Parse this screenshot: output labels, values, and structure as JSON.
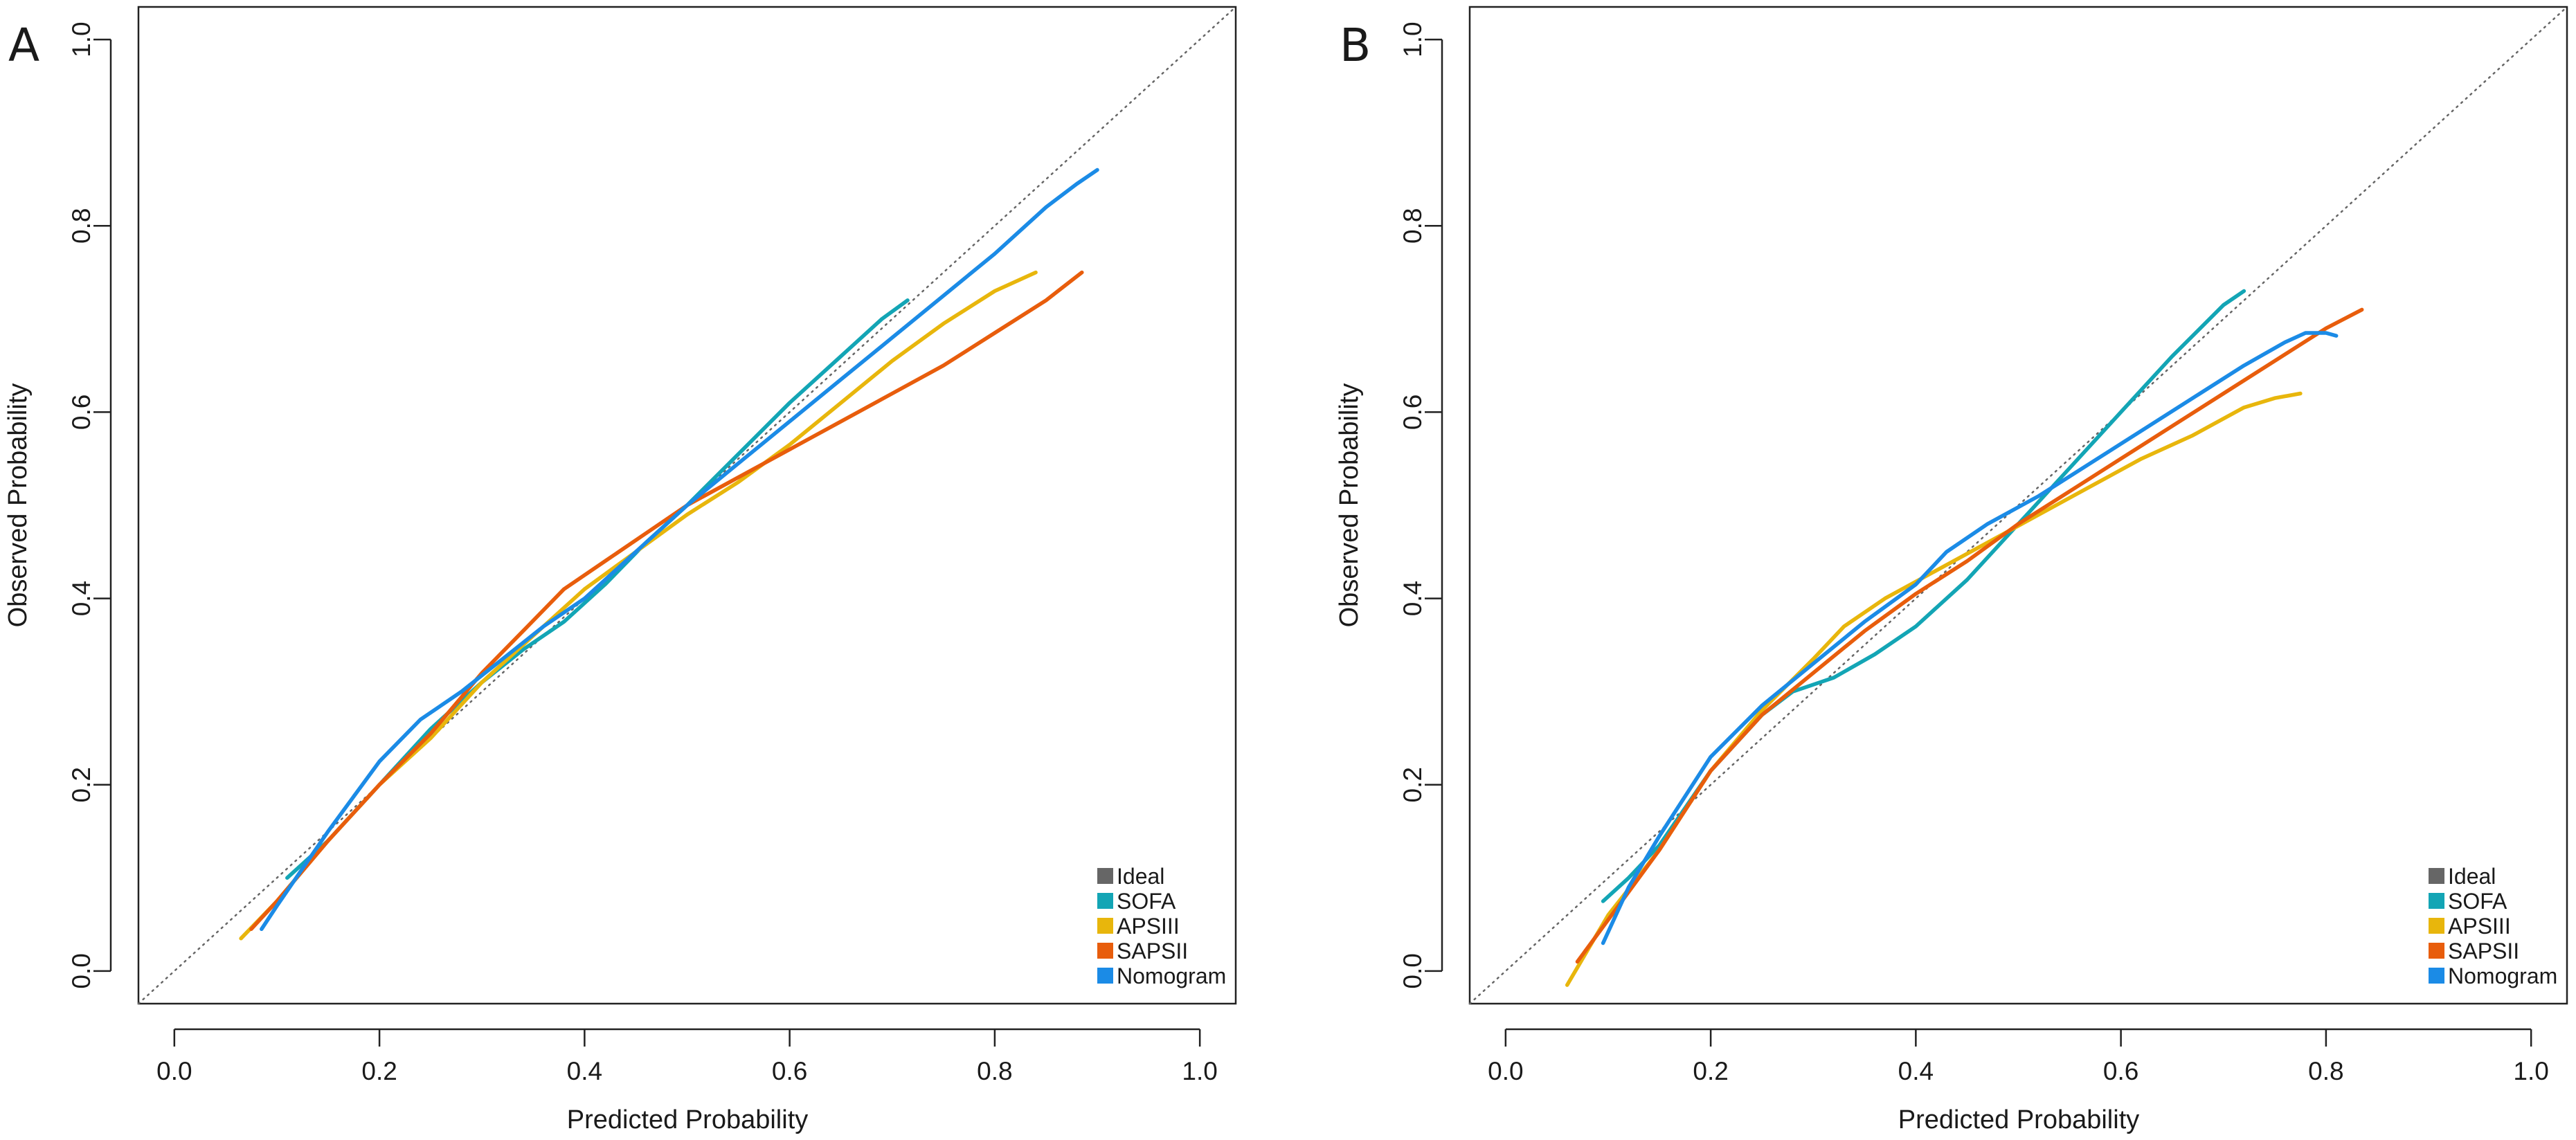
{
  "chart_data": [
    {
      "type": "line",
      "panel_label": "A",
      "title": "",
      "xlabel": "Predicted Probability",
      "ylabel": "Observed Probability",
      "xlim": [
        -0.035,
        1.035
      ],
      "ylim": [
        -0.035,
        1.035
      ],
      "xticks": [
        0.0,
        0.2,
        0.4,
        0.6,
        0.8,
        1.0
      ],
      "xtick_labels": [
        "0.0",
        "0.2",
        "0.4",
        "0.6",
        "0.8",
        "1.0"
      ],
      "yticks": [
        0.0,
        0.2,
        0.4,
        0.6,
        0.8,
        1.0
      ],
      "ytick_labels": [
        "0.0",
        "0.2",
        "0.4",
        "0.6",
        "0.8",
        "1.0"
      ],
      "grid": false,
      "legend_position": "bottom-right",
      "ideal_line": {
        "name": "Ideal",
        "color": "#666666",
        "x": [
          -0.035,
          1.035
        ],
        "y": [
          -0.035,
          1.035
        ]
      },
      "series": [
        {
          "name": "SOFA",
          "color": "#13A5B5",
          "x": [
            0.11,
            0.15,
            0.2,
            0.25,
            0.3,
            0.34,
            0.38,
            0.42,
            0.46,
            0.5,
            0.55,
            0.6,
            0.65,
            0.69,
            0.715
          ],
          "y": [
            0.1,
            0.14,
            0.2,
            0.26,
            0.31,
            0.345,
            0.375,
            0.415,
            0.46,
            0.5,
            0.555,
            0.61,
            0.66,
            0.7,
            0.72
          ]
        },
        {
          "name": "APSIII",
          "color": "#E8B60C",
          "x": [
            0.065,
            0.1,
            0.15,
            0.2,
            0.25,
            0.3,
            0.35,
            0.4,
            0.45,
            0.5,
            0.55,
            0.6,
            0.65,
            0.7,
            0.75,
            0.8,
            0.84
          ],
          "y": [
            0.035,
            0.075,
            0.14,
            0.2,
            0.25,
            0.31,
            0.36,
            0.41,
            0.45,
            0.49,
            0.525,
            0.565,
            0.61,
            0.655,
            0.695,
            0.73,
            0.75
          ]
        },
        {
          "name": "SAPSII",
          "color": "#E85D0C",
          "x": [
            0.075,
            0.1,
            0.15,
            0.2,
            0.25,
            0.3,
            0.34,
            0.38,
            0.42,
            0.46,
            0.5,
            0.55,
            0.6,
            0.65,
            0.7,
            0.75,
            0.8,
            0.85,
            0.885
          ],
          "y": [
            0.045,
            0.075,
            0.14,
            0.2,
            0.255,
            0.32,
            0.365,
            0.41,
            0.44,
            0.47,
            0.5,
            0.53,
            0.56,
            0.59,
            0.62,
            0.65,
            0.685,
            0.72,
            0.75
          ]
        },
        {
          "name": "Nomogram",
          "color": "#1B8BE6",
          "x": [
            0.085,
            0.1,
            0.15,
            0.2,
            0.24,
            0.28,
            0.32,
            0.36,
            0.4,
            0.45,
            0.5,
            0.55,
            0.6,
            0.65,
            0.7,
            0.75,
            0.8,
            0.85,
            0.88,
            0.9
          ],
          "y": [
            0.045,
            0.07,
            0.15,
            0.225,
            0.27,
            0.3,
            0.335,
            0.37,
            0.4,
            0.45,
            0.5,
            0.545,
            0.59,
            0.635,
            0.68,
            0.725,
            0.77,
            0.82,
            0.845,
            0.86
          ]
        }
      ]
    },
    {
      "type": "line",
      "panel_label": "B",
      "title": "",
      "xlabel": "Predicted Probability",
      "ylabel": "Observed Probability",
      "xlim": [
        -0.035,
        1.035
      ],
      "ylim": [
        -0.035,
        1.035
      ],
      "xticks": [
        0.0,
        0.2,
        0.4,
        0.6,
        0.8,
        1.0
      ],
      "xtick_labels": [
        "0.0",
        "0.2",
        "0.4",
        "0.6",
        "0.8",
        "1.0"
      ],
      "yticks": [
        0.0,
        0.2,
        0.4,
        0.6,
        0.8,
        1.0
      ],
      "ytick_labels": [
        "0.0",
        "0.2",
        "0.4",
        "0.6",
        "0.8",
        "1.0"
      ],
      "grid": false,
      "legend_position": "bottom-right",
      "ideal_line": {
        "name": "Ideal",
        "color": "#666666",
        "x": [
          -0.035,
          1.035
        ],
        "y": [
          -0.035,
          1.035
        ]
      },
      "series": [
        {
          "name": "SOFA",
          "color": "#13A5B5",
          "x": [
            0.095,
            0.12,
            0.15,
            0.2,
            0.25,
            0.28,
            0.32,
            0.36,
            0.4,
            0.45,
            0.5,
            0.55,
            0.6,
            0.65,
            0.7,
            0.72
          ],
          "y": [
            0.075,
            0.1,
            0.135,
            0.215,
            0.275,
            0.3,
            0.315,
            0.34,
            0.37,
            0.42,
            0.48,
            0.54,
            0.6,
            0.66,
            0.715,
            0.73
          ]
        },
        {
          "name": "APSIII",
          "color": "#E8B60C",
          "x": [
            0.06,
            0.1,
            0.15,
            0.2,
            0.25,
            0.3,
            0.33,
            0.37,
            0.42,
            0.47,
            0.52,
            0.57,
            0.62,
            0.67,
            0.72,
            0.75,
            0.775
          ],
          "y": [
            -0.015,
            0.06,
            0.13,
            0.215,
            0.28,
            0.335,
            0.37,
            0.4,
            0.43,
            0.46,
            0.49,
            0.52,
            0.55,
            0.575,
            0.605,
            0.615,
            0.62
          ]
        },
        {
          "name": "SAPSII",
          "color": "#E85D0C",
          "x": [
            0.07,
            0.1,
            0.15,
            0.2,
            0.25,
            0.3,
            0.35,
            0.4,
            0.45,
            0.5,
            0.55,
            0.6,
            0.65,
            0.7,
            0.75,
            0.8,
            0.835
          ],
          "y": [
            0.01,
            0.055,
            0.13,
            0.215,
            0.275,
            0.32,
            0.365,
            0.405,
            0.44,
            0.48,
            0.515,
            0.55,
            0.585,
            0.62,
            0.655,
            0.69,
            0.71
          ]
        },
        {
          "name": "Nomogram",
          "color": "#1B8BE6",
          "x": [
            0.095,
            0.12,
            0.15,
            0.2,
            0.25,
            0.3,
            0.35,
            0.4,
            0.43,
            0.47,
            0.52,
            0.57,
            0.62,
            0.67,
            0.72,
            0.76,
            0.78,
            0.8,
            0.81
          ],
          "y": [
            0.03,
            0.09,
            0.145,
            0.23,
            0.285,
            0.33,
            0.375,
            0.415,
            0.45,
            0.48,
            0.51,
            0.545,
            0.58,
            0.615,
            0.65,
            0.675,
            0.685,
            0.685,
            0.682
          ]
        }
      ]
    }
  ]
}
